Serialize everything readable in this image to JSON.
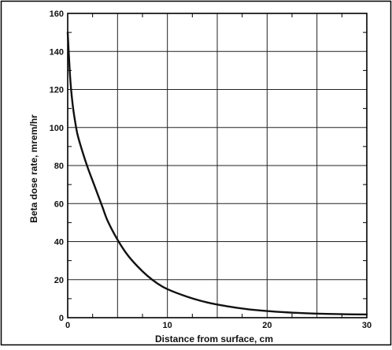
{
  "chart_data": {
    "type": "line",
    "title": "",
    "xlabel": "Distance from surface, cm",
    "ylabel": "Beta dose rate, mrem/hr",
    "xlim": [
      0,
      30
    ],
    "ylim": [
      0,
      160
    ],
    "x_ticks": [
      "0",
      "10",
      "20",
      "30"
    ],
    "y_ticks": [
      "0",
      "20",
      "40",
      "60",
      "80",
      "100",
      "120",
      "140",
      "160"
    ],
    "grid": true,
    "legend": "none",
    "series": [
      {
        "color": "#111111",
        "x": [
          0,
          0.25,
          0.5,
          0.75,
          1,
          1.5,
          2,
          2.5,
          3,
          3.5,
          4,
          5,
          6,
          7,
          8,
          9,
          10,
          12,
          14,
          16,
          18,
          20,
          22,
          24,
          26,
          28,
          30
        ],
        "y": [
          150,
          126,
          112,
          103,
          96,
          87,
          79,
          72,
          65,
          58,
          51,
          41,
          33,
          27,
          22,
          18,
          15,
          11,
          8,
          6,
          4.5,
          3.5,
          2.8,
          2.3,
          2,
          1.8,
          1.7
        ]
      }
    ]
  }
}
